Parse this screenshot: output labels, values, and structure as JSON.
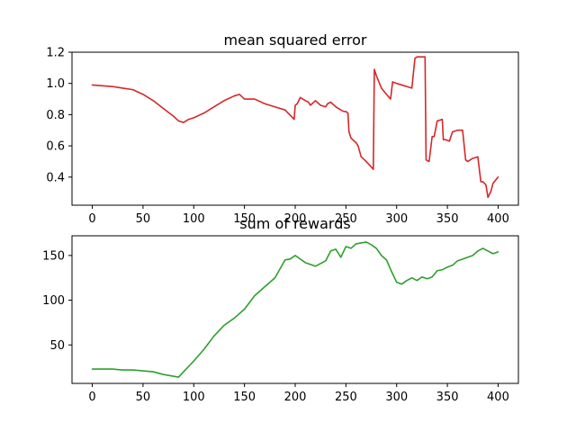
{
  "chart_data": [
    {
      "type": "line",
      "title": "mean squared error",
      "xlabel": "",
      "ylabel": "",
      "xlim": [
        -20,
        420
      ],
      "ylim": [
        0.22,
        1.2
      ],
      "xticks": [
        0,
        50,
        100,
        150,
        200,
        250,
        300,
        350,
        400
      ],
      "yticks": [
        0.4,
        0.6,
        0.8,
        1.0,
        1.2
      ],
      "ytick_labels": [
        "0.4",
        "0.6",
        "0.8",
        "1.0",
        "1.2"
      ],
      "grid": false,
      "color": "#d62728",
      "series": [
        {
          "x": [
            0,
            10,
            20,
            30,
            40,
            50,
            60,
            70,
            80,
            85,
            90,
            95,
            100,
            110,
            120,
            130,
            140,
            145,
            150,
            160,
            170,
            180,
            190,
            199,
            200,
            202,
            205,
            210,
            213,
            215,
            220,
            225,
            230,
            232,
            235,
            240,
            245,
            248,
            250,
            252,
            253,
            255,
            260,
            262,
            265,
            270,
            277,
            278,
            280,
            285,
            290,
            294,
            296,
            300,
            305,
            310,
            315,
            318,
            320,
            325,
            328,
            329,
            332,
            335,
            337,
            340,
            345,
            346,
            348,
            352,
            355,
            360,
            365,
            368,
            370,
            375,
            380,
            383,
            385,
            388,
            390,
            393,
            395,
            400
          ],
          "y": [
            0.99,
            0.985,
            0.98,
            0.97,
            0.96,
            0.93,
            0.89,
            0.84,
            0.79,
            0.76,
            0.75,
            0.77,
            0.78,
            0.81,
            0.85,
            0.89,
            0.92,
            0.93,
            0.9,
            0.9,
            0.87,
            0.85,
            0.83,
            0.77,
            0.86,
            0.87,
            0.91,
            0.89,
            0.88,
            0.86,
            0.89,
            0.86,
            0.85,
            0.87,
            0.88,
            0.85,
            0.83,
            0.82,
            0.82,
            0.81,
            0.69,
            0.65,
            0.62,
            0.6,
            0.53,
            0.5,
            0.45,
            1.09,
            1.05,
            0.97,
            0.93,
            0.9,
            1.01,
            1.0,
            0.99,
            0.98,
            0.97,
            1.16,
            1.17,
            1.17,
            1.17,
            0.51,
            0.5,
            0.66,
            0.66,
            0.76,
            0.77,
            0.64,
            0.64,
            0.63,
            0.69,
            0.7,
            0.7,
            0.51,
            0.5,
            0.52,
            0.53,
            0.37,
            0.37,
            0.35,
            0.27,
            0.31,
            0.36,
            0.4
          ]
        }
      ]
    },
    {
      "type": "line",
      "title": "sum of rewards",
      "xlabel": "",
      "ylabel": "",
      "xlim": [
        -20,
        420
      ],
      "ylim": [
        7,
        172
      ],
      "xticks": [
        0,
        50,
        100,
        150,
        200,
        250,
        300,
        350,
        400
      ],
      "yticks": [
        50,
        100,
        150
      ],
      "ytick_labels": [
        "50",
        "100",
        "150"
      ],
      "grid": false,
      "color": "#2ca02c",
      "series": [
        {
          "x": [
            0,
            10,
            20,
            30,
            40,
            50,
            60,
            70,
            80,
            85,
            90,
            95,
            100,
            110,
            120,
            130,
            140,
            150,
            160,
            170,
            180,
            190,
            195,
            200,
            210,
            220,
            230,
            235,
            240,
            245,
            250,
            255,
            260,
            270,
            275,
            280,
            285,
            290,
            295,
            300,
            305,
            310,
            315,
            320,
            325,
            330,
            335,
            340,
            345,
            350,
            355,
            360,
            365,
            370,
            375,
            380,
            385,
            390,
            395,
            400
          ],
          "y": [
            23,
            23,
            23,
            22,
            22,
            21,
            20,
            17,
            15,
            14,
            20,
            26,
            32,
            45,
            60,
            72,
            80,
            90,
            105,
            115,
            125,
            145,
            146,
            150,
            142,
            138,
            144,
            155,
            157,
            148,
            160,
            158,
            163,
            165,
            162,
            158,
            150,
            145,
            132,
            120,
            118,
            122,
            125,
            122,
            126,
            124,
            126,
            133,
            134,
            137,
            139,
            144,
            146,
            148,
            150,
            155,
            158,
            155,
            152,
            154
          ]
        }
      ]
    }
  ]
}
